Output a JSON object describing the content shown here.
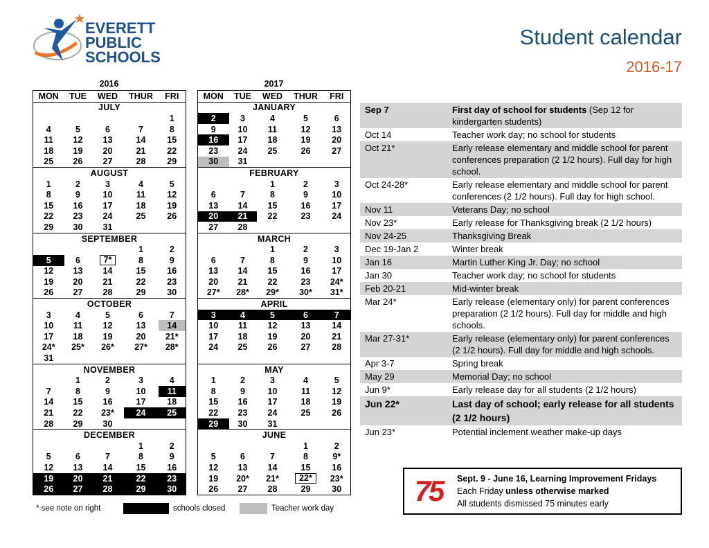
{
  "header": {
    "logo": [
      "EVERETT",
      "PUBLIC",
      "SCHOOLS"
    ],
    "title": "Student calendar",
    "subtitle": "2016-17"
  },
  "calendars": [
    {
      "year": "2016",
      "days": [
        "MON",
        "TUE",
        "WED",
        "THUR",
        "FRI"
      ],
      "months": [
        {
          "name": "JULY",
          "weeks": [
            [
              null,
              null,
              null,
              null,
              "1"
            ],
            [
              "4",
              "5",
              "6",
              "7",
              "8"
            ],
            [
              "11",
              "12",
              "13",
              "14",
              "15"
            ],
            [
              "18",
              "19",
              "20",
              "21",
              "22"
            ],
            [
              "25",
              "26",
              "27",
              "28",
              "29"
            ]
          ]
        },
        {
          "name": "AUGUST",
          "weeks": [
            [
              "1",
              "2",
              "3",
              "4",
              "5"
            ],
            [
              "8",
              "9",
              "10",
              "11",
              "12"
            ],
            [
              "15",
              "16",
              "17",
              "18",
              "19"
            ],
            [
              "22",
              "23",
              "24",
              "25",
              "26"
            ],
            [
              "29",
              "30",
              "31",
              null,
              null
            ]
          ]
        },
        {
          "name": "SEPTEMBER",
          "weeks": [
            [
              null,
              null,
              null,
              "1",
              "2"
            ],
            [
              {
                "text": "5",
                "style": "closed"
              },
              "6",
              {
                "text": "7*",
                "style": "boxed"
              },
              "8",
              "9"
            ],
            [
              "12",
              "13",
              "14",
              "15",
              "16"
            ],
            [
              "19",
              "20",
              "21",
              "22",
              "23"
            ],
            [
              "26",
              "27",
              "28",
              "29",
              "30"
            ]
          ]
        },
        {
          "name": "OCTOBER",
          "weeks": [
            [
              "3",
              "4",
              "5",
              "6",
              "7"
            ],
            [
              "10",
              "11",
              "12",
              "13",
              {
                "text": "14",
                "style": "workday"
              }
            ],
            [
              "17",
              "18",
              "19",
              "20",
              "21*"
            ],
            [
              "24*",
              "25*",
              "26*",
              "27*",
              "28*"
            ],
            [
              "31",
              null,
              null,
              null,
              null
            ]
          ]
        },
        {
          "name": "NOVEMBER",
          "weeks": [
            [
              null,
              "1",
              "2",
              "3",
              "4"
            ],
            [
              "7",
              "8",
              "9",
              "10",
              {
                "text": "11",
                "style": "closed"
              }
            ],
            [
              "14",
              "15",
              "16",
              "17",
              "18"
            ],
            [
              "21",
              "22",
              "23*",
              {
                "text": "24",
                "style": "closed"
              },
              {
                "text": "25",
                "style": "closed"
              }
            ],
            [
              "28",
              "29",
              "30",
              null,
              null
            ]
          ]
        },
        {
          "name": "DECEMBER",
          "weeks": [
            [
              null,
              null,
              null,
              "1",
              "2"
            ],
            [
              "5",
              "6",
              "7",
              "8",
              "9"
            ],
            [
              "12",
              "13",
              "14",
              "15",
              "16"
            ],
            [
              {
                "text": "19",
                "style": "closed"
              },
              {
                "text": "20",
                "style": "closed"
              },
              {
                "text": "21",
                "style": "closed"
              },
              {
                "text": "22",
                "style": "closed"
              },
              {
                "text": "23",
                "style": "closed"
              }
            ],
            [
              {
                "text": "26",
                "style": "closed"
              },
              {
                "text": "27",
                "style": "closed"
              },
              {
                "text": "28",
                "style": "closed"
              },
              {
                "text": "29",
                "style": "closed"
              },
              {
                "text": "30",
                "style": "closed"
              }
            ]
          ]
        }
      ]
    },
    {
      "year": "2017",
      "days": [
        "MON",
        "TUE",
        "WED",
        "THUR",
        "FRI"
      ],
      "months": [
        {
          "name": "JANUARY",
          "weeks": [
            [
              {
                "text": "2",
                "style": "closed"
              },
              "3",
              "4",
              "5",
              "6"
            ],
            [
              "9",
              "10",
              "11",
              "12",
              "13"
            ],
            [
              {
                "text": "16",
                "style": "closed"
              },
              "17",
              "18",
              "19",
              "20"
            ],
            [
              "23",
              "24",
              "25",
              "26",
              "27"
            ],
            [
              {
                "text": "30",
                "style": "workday"
              },
              "31",
              null,
              null,
              null
            ]
          ]
        },
        {
          "name": "FEBRUARY",
          "weeks": [
            [
              null,
              null,
              "1",
              "2",
              "3"
            ],
            [
              "6",
              "7",
              "8",
              "9",
              "10"
            ],
            [
              "13",
              "14",
              "15",
              "16",
              "17"
            ],
            [
              {
                "text": "20",
                "style": "closed"
              },
              {
                "text": "21",
                "style": "closed"
              },
              "22",
              "23",
              "24"
            ],
            [
              "27",
              "28",
              null,
              null,
              null
            ]
          ]
        },
        {
          "name": "MARCH",
          "weeks": [
            [
              null,
              null,
              "1",
              "2",
              "3"
            ],
            [
              "6",
              "7",
              "8",
              "9",
              "10"
            ],
            [
              "13",
              "14",
              "15",
              "16",
              "17"
            ],
            [
              "20",
              "21",
              "22",
              "23",
              "24*"
            ],
            [
              "27*",
              "28*",
              "29*",
              "30*",
              "31*"
            ]
          ]
        },
        {
          "name": "APRIL",
          "weeks": [
            [
              {
                "text": "3",
                "style": "closed"
              },
              {
                "text": "4",
                "style": "closed"
              },
              {
                "text": "5",
                "style": "closed"
              },
              {
                "text": "6",
                "style": "closed"
              },
              {
                "text": "7",
                "style": "closed"
              }
            ],
            [
              "10",
              "11",
              "12",
              "13",
              "14"
            ],
            [
              "17",
              "18",
              "19",
              "20",
              "21"
            ],
            [
              "24",
              "25",
              "26",
              "27",
              "28"
            ]
          ]
        },
        {
          "name": "MAY",
          "weeks": [
            [
              "1",
              "2",
              "3",
              "4",
              "5"
            ],
            [
              "8",
              "9",
              "10",
              "11",
              "12"
            ],
            [
              "15",
              "16",
              "17",
              "18",
              "19"
            ],
            [
              "22",
              "23",
              "24",
              "25",
              "26"
            ],
            [
              {
                "text": "29",
                "style": "closed"
              },
              "30",
              "31",
              null,
              null
            ]
          ]
        },
        {
          "name": "JUNE",
          "weeks": [
            [
              null,
              null,
              null,
              "1",
              "2"
            ],
            [
              "5",
              "6",
              "7",
              "8",
              "9*"
            ],
            [
              "12",
              "13",
              "14",
              "15",
              "16"
            ],
            [
              "19",
              "20*",
              "21*",
              {
                "text": "22*",
                "style": "boxed"
              },
              "23*"
            ],
            [
              "26",
              "27",
              "28",
              "29",
              "30"
            ]
          ]
        }
      ]
    }
  ],
  "legend": {
    "note": "* see note on right",
    "closed": "schools closed",
    "workday": "Teacher work day"
  },
  "events": [
    {
      "date": "Sep 7",
      "text": "First day of school for students",
      "note": " (Sep 12 for kindergarten students)",
      "bold": true
    },
    {
      "date": "Oct 14",
      "text": "Teacher work day; no school for students"
    },
    {
      "date": "Oct 21*",
      "text": "Early release elementary and middle school for parent conferences preparation (2 1/2 hours). Full day for high school."
    },
    {
      "date": "Oct 24-28*",
      "text": "Early release elementary and middle school for parent conferences (2 1/2 hours). Full day for high school."
    },
    {
      "date": "Nov 11",
      "text": "Veterans Day; no school"
    },
    {
      "date": "Nov 23*",
      "text": "Early release for Thanksgiving break (2 1/2 hours)"
    },
    {
      "date": "Nov 24-25",
      "text": "Thanksgiving Break"
    },
    {
      "date": "Dec 19-Jan 2",
      "text": "Winter break"
    },
    {
      "date": "Jan 16",
      "text": "Martin Luther King Jr. Day; no school"
    },
    {
      "date": "Jan 30",
      "text": "Teacher work day; no school for students"
    },
    {
      "date": "Feb 20-21",
      "text": "Mid-winter break"
    },
    {
      "date": "Mar 24*",
      "text": "Early release (elementary only) for parent conferences preparation (2 1/2 hours). Full day for middle and high schools."
    },
    {
      "date": "Mar 27-31*",
      "text": "Early release (elementary only) for parent conferences (2 1/2 hours). Full day for middle and high schools."
    },
    {
      "date": "Apr 3-7",
      "text": "Spring break"
    },
    {
      "date": "May 29",
      "text": "Memorial Day; no school"
    },
    {
      "date": "Jun 9*",
      "text": "Early release day for all students (2 1/2 hours)"
    },
    {
      "date": "Jun 22*",
      "text": "Last day of school; early release for all students (2 1/2 hours)",
      "bold": true
    },
    {
      "date": "Jun 23*",
      "text": "Potential inclement weather make-up days"
    }
  ],
  "notice": {
    "badge": "75",
    "headline": "Sept. 9 - June 16, Learning Improvement Fridays",
    "line2": "Each Friday ",
    "line2_bold": "unless otherwise marked",
    "line3": "All students dismissed 75 minutes early"
  }
}
